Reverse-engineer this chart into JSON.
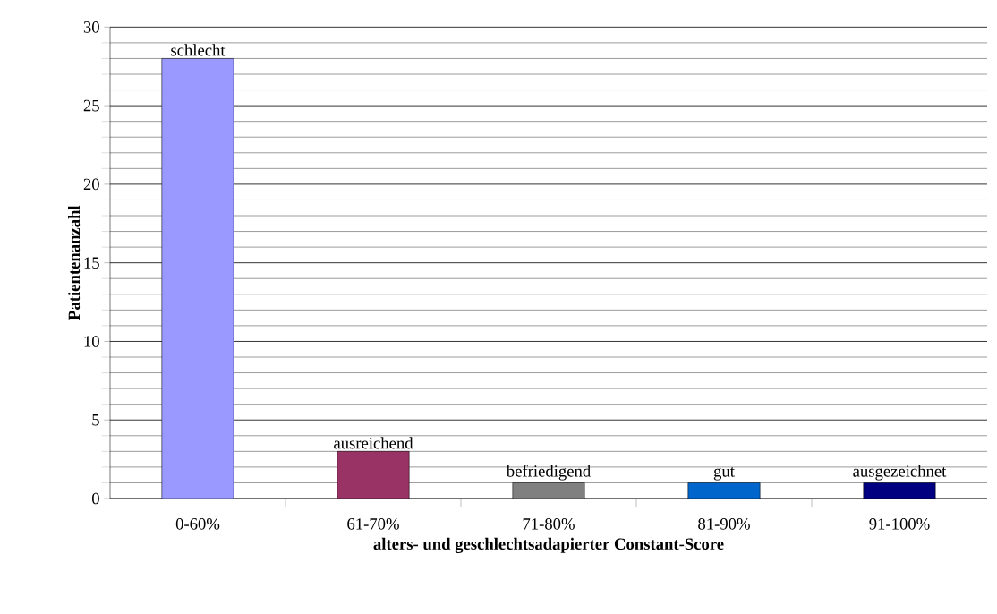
{
  "chart_data": {
    "type": "bar",
    "xlabel": "alters- und geschlechtsadapierter Constant-Score",
    "ylabel": "Patientenanzahl",
    "categories": [
      "0-60%",
      "61-70%",
      "71-80%",
      "81-90%",
      "91-100%"
    ],
    "values": [
      28,
      3,
      1,
      1,
      1
    ],
    "colors": [
      "#9999ff",
      "#993366",
      "#808080",
      "#0066cc",
      "#000080"
    ],
    "ylim": [
      0,
      30
    ],
    "yticks": [
      0,
      5,
      10,
      15,
      20,
      25,
      30
    ],
    "grid": "y",
    "annotations": [
      {
        "text": "schlecht",
        "x": "0-60%",
        "y": 28
      },
      {
        "text": "ausreichend",
        "x": "61-70%",
        "y": 3
      },
      {
        "text": "befriedigend",
        "x": "71-80%",
        "y": 1
      },
      {
        "text": "gut",
        "x": "81-90%",
        "y": 1
      },
      {
        "text": "ausgezeichnet",
        "x": "91-100%",
        "y": 1
      }
    ]
  }
}
